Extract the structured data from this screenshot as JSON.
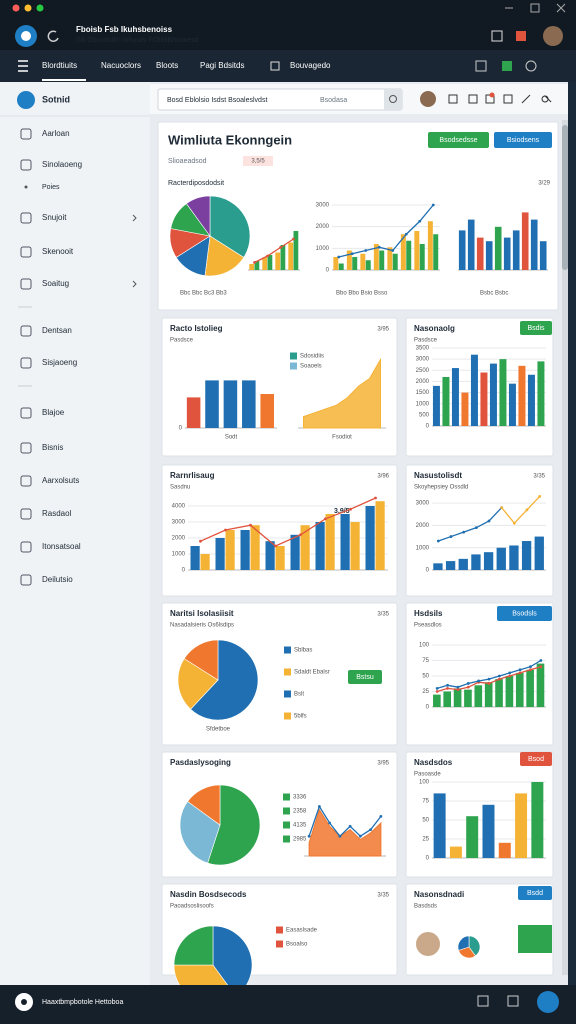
{
  "window": {
    "title": "Fboisb Fsb Ikuhsbenoiss",
    "subtitle": "Gb Gbuvdstkh Iohusiis FObbiBhuovesd"
  },
  "nav": {
    "tabs": [
      "Blordtiuits",
      "Nacuoclors",
      "Bloots",
      "Pagi Bdsitds",
      "Bouvagedo"
    ]
  },
  "sidebar": {
    "title": "Sotnid",
    "items": [
      "Aarloan",
      "Sinolaoeng",
      "Poies",
      "Snujoit",
      "Skenooit",
      "Soaitug",
      "Dentsan",
      "Sisjaoeng",
      "Blajoe",
      "Bisnis",
      "Aarxolsuts",
      "Rasdaol",
      "Itonsatsoal",
      "Deilutsio"
    ]
  },
  "search": {
    "text": "Bosd  Eblolsio  Isdst Bsoaleslvdst",
    "filter": "Bsodasa"
  },
  "overview": {
    "title": "Wimliuta Ekonngein",
    "buttons": [
      {
        "label": "Bsodsedsse",
        "color": "#2ea44f"
      },
      {
        "label": "Bsiodsens",
        "color": "#1f7fc4"
      }
    ],
    "tag_label": "Slioaeadsod",
    "tag": "3,5/5",
    "chart_title": "Racterdiposdodsit",
    "chart_note": "3/29",
    "legends": [
      "Bbc Bbc Bc3 Bb3",
      "Bbo Bbo Bsio Bsso",
      "Bsbc Bsbc"
    ],
    "charts": [
      {
        "type": "pie",
        "values": [
          34,
          18,
          14,
          12,
          12,
          10
        ],
        "colors": [
          "#2a9d8f",
          "#f5b335",
          "#1f6fb2",
          "#e0533d",
          "#2ea44f",
          "#7b3fa0"
        ]
      },
      {
        "type": "bar",
        "ylim": [
          0,
          100
        ],
        "series": [
          {
            "color": "#f5b335",
            "values": [
              12,
              25,
              35,
              55
            ]
          },
          {
            "color": "#2ea44f",
            "values": [
              18,
              30,
              50,
              78
            ]
          }
        ],
        "lines": [
          {
            "color": "#e0533d",
            "values": [
              15,
              28,
              45,
              62
            ]
          }
        ]
      },
      {
        "type": "bar",
        "ylim": [
          0,
          3000
        ],
        "yticks": [
          0,
          1000,
          2000,
          3000
        ],
        "series": [
          {
            "color": "#f5b335",
            "values": [
              600,
              900,
              750,
              1200,
              1050,
              1650,
              1800,
              2250
            ]
          },
          {
            "color": "#2ea44f",
            "values": [
              300,
              600,
              450,
              900,
              750,
              1350,
              1200,
              1650
            ]
          }
        ],
        "lines": [
          {
            "color": "#1f6fb2",
            "values": [
              600,
              750,
              900,
              1050,
              900,
              1650,
              2250,
              3000
            ]
          }
        ]
      },
      {
        "type": "bar",
        "ylim": [
          0,
          100
        ],
        "series": [
          {
            "values": [
              55,
              70,
              45,
              40,
              60,
              45,
              55,
              80,
              70,
              40
            ]
          }
        ],
        "colors": [
          "#1f6fb2",
          "#1f6fb2",
          "#e0533d",
          "#1f6fb2",
          "#2ea44f",
          "#1f6fb2",
          "#1f6fb2",
          "#e0533d",
          "#1f6fb2",
          "#1f6fb2"
        ]
      }
    ]
  },
  "cards": [
    {
      "title": "Racto Istolieg",
      "note": "3/95",
      "subtitle": "Pasdsce",
      "legend": [
        {
          "label": "Sdosidiis",
          "color": "#2a9d8f"
        },
        {
          "label": "Soaoels",
          "color": "#7ab8d6"
        }
      ],
      "charts": [
        {
          "type": "bar",
          "ylim": [
            0,
            100
          ],
          "yticks": [
            0
          ],
          "xlabel": "Sodt",
          "series": [
            {
              "values": [
                45,
                70,
                70,
                70,
                50
              ]
            }
          ],
          "colors": [
            "#e0533d",
            "#1f6fb2",
            "#1f6fb2",
            "#1f6fb2",
            "#f0772e"
          ]
        },
        {
          "type": "area",
          "ylim": [
            0,
            100
          ],
          "xlabel": "Fsodiot",
          "series": [
            {
              "color": "#f5b335",
              "values": [
                15,
                20,
                25,
                30,
                40,
                55,
                65,
                90
              ]
            }
          ]
        }
      ]
    },
    {
      "title": "Nasonaolg",
      "subtitle": "Pasdsce",
      "button": {
        "label": "Bsdis",
        "color": "#2ea44f"
      },
      "charts": [
        {
          "type": "bar",
          "ylim": [
            0,
            3500
          ],
          "yticks": [
            0,
            500,
            1000,
            1500,
            2000,
            2500,
            3000,
            3500
          ],
          "series": [
            {
              "values": [
                1800,
                2200,
                2600,
                1500,
                3200,
                2400,
                2800,
                3000,
                1900,
                2700,
                2300,
                2900
              ]
            }
          ],
          "colors": [
            "#1f6fb2",
            "#2ea44f",
            "#1f6fb2",
            "#f0772e",
            "#1f6fb2",
            "#e0533d",
            "#1f6fb2",
            "#2ea44f",
            "#1f6fb2",
            "#f0772e",
            "#1f6fb2",
            "#2ea44f"
          ]
        }
      ]
    },
    {
      "title": "Rarnrlisaug",
      "note": "3/96",
      "subtitle": "Sasdnu",
      "annotation": "3,9/5",
      "charts": [
        {
          "type": "bar",
          "ylim": [
            0,
            5000
          ],
          "yticks": [
            0,
            1000,
            2000,
            3000,
            4000
          ],
          "series": [
            {
              "color": "#1f6fb2",
              "values": [
                1500,
                2000,
                2500,
                1800,
                2200,
                3000,
                3500,
                4000
              ]
            },
            {
              "color": "#f5b335",
              "values": [
                1000,
                2500,
                2800,
                1500,
                2800,
                3500,
                3000,
                4300
              ]
            }
          ],
          "lines": [
            {
              "color": "#e0533d",
              "values": [
                1800,
                2500,
                2800,
                1500,
                2200,
                3200,
                3800,
                4500
              ]
            }
          ]
        }
      ]
    },
    {
      "title": "Nasustolisdt",
      "note": "3/35",
      "subtitle": "Skoyhepsiey Ossdld",
      "charts": [
        {
          "type": "bar",
          "ylim": [
            0,
            3500
          ],
          "yticks": [
            0,
            1000,
            2000,
            3000
          ],
          "series": [
            {
              "color": "#1f6fb2",
              "values": [
                300,
                400,
                500,
                700,
                800,
                1000,
                1100,
                1300,
                1500
              ]
            }
          ],
          "lines": [
            {
              "color": "#1f6fb2",
              "values": [
                1300,
                1500,
                1700,
                1900,
                2200,
                2800,
                null,
                null,
                null
              ]
            },
            {
              "color": "#f5b335",
              "values": [
                null,
                null,
                null,
                null,
                null,
                2800,
                2100,
                2700,
                3300
              ]
            }
          ]
        }
      ]
    },
    {
      "title": "Naritsi Isolasiisit",
      "note": "3/35",
      "subtitle": "Nasadalsieris Os6lsdips",
      "button": {
        "label": "Bstsu",
        "color": "#2ea44f"
      },
      "legend": [
        {
          "label": "Sblbas",
          "color": "#1f6fb2"
        },
        {
          "label": "Sdaldt Ebalsr",
          "color": "#f5b335"
        },
        {
          "label": "Bslt",
          "color": "#1f6fb2"
        },
        {
          "label": "5blfs",
          "color": "#f5b335"
        }
      ],
      "charts": [
        {
          "type": "pie",
          "xlabel": "Sfdetboe",
          "values": [
            62,
            22,
            16
          ],
          "colors": [
            "#1f6fb2",
            "#f5b335",
            "#f0772e"
          ]
        }
      ]
    },
    {
      "title": "Hsdsils",
      "subtitle": "Pseasdlos",
      "button": {
        "label": "Bsodsls",
        "color": "#1f7fc4"
      },
      "charts": [
        {
          "type": "bar",
          "ylim": [
            0,
            100
          ],
          "yticks": [
            0,
            25,
            50,
            75,
            100
          ],
          "series": [
            {
              "color": "#2ea44f",
              "values": [
                20,
                25,
                30,
                28,
                35,
                40,
                45,
                50,
                55,
                60,
                70
              ]
            }
          ],
          "lines": [
            {
              "color": "#e0533d",
              "values": [
                25,
                30,
                28,
                32,
                40,
                38,
                45,
                50,
                55,
                60,
                65
              ]
            },
            {
              "color": "#1f6fb2",
              "values": [
                30,
                35,
                32,
                38,
                42,
                45,
                50,
                55,
                60,
                65,
                75
              ]
            }
          ]
        }
      ]
    },
    {
      "title": "Pasdaslysoging",
      "note": "3/95",
      "legend": [
        {
          "label": "3336",
          "color": "#2ea44f"
        },
        {
          "label": "2358",
          "color": "#2ea44f"
        },
        {
          "label": "4135",
          "color": "#2ea44f"
        },
        {
          "label": "2985",
          "color": "#2ea44f"
        }
      ],
      "charts": [
        {
          "type": "pie",
          "values": [
            55,
            30,
            15
          ],
          "colors": [
            "#2ea44f",
            "#7ab8d6",
            "#f0772e"
          ]
        },
        {
          "type": "area",
          "ylim": [
            0,
            100
          ],
          "series": [
            {
              "color": "#f0772e",
              "values": [
                20,
                70,
                45,
                30,
                40,
                25,
                35,
                50
              ]
            }
          ],
          "lines": [
            {
              "color": "#1f6fb2",
              "values": [
                30,
                75,
                50,
                30,
                45,
                30,
                40,
                60
              ]
            }
          ]
        }
      ]
    },
    {
      "title": "Nasdsdos",
      "subtitle": "Pasoasde",
      "button": {
        "label": "Bsod",
        "color": "#e0533d"
      },
      "charts": [
        {
          "type": "bar",
          "ylim": [
            0,
            100
          ],
          "yticks": [
            0,
            25,
            50,
            75,
            100
          ],
          "series": [
            {
              "values": [
                85,
                15,
                55,
                70,
                20,
                85,
                100
              ]
            }
          ],
          "colors": [
            "#1f6fb2",
            "#f5b335",
            "#2ea44f",
            "#1f6fb2",
            "#f0772e",
            "#f5b335",
            "#2ea44f"
          ]
        }
      ]
    },
    {
      "title": "Nasdin Bosdsecods",
      "note": "3/35",
      "subtitle": "Paoadsoslisoofs",
      "legend": [
        {
          "label": "Easaslsade",
          "color": "#e0533d"
        },
        {
          "label": "Bsoalso",
          "color": "#e0533d"
        }
      ],
      "charts": [
        {
          "type": "pie",
          "values": [
            40,
            35,
            25
          ],
          "colors": [
            "#1f6fb2",
            "#f5b335",
            "#2ea44f"
          ]
        }
      ]
    },
    {
      "title": "Nasonsdnadi",
      "subtitle": "Basdsds",
      "button": {
        "label": "Bsdd",
        "color": "#1f7fc4"
      },
      "charts": [
        {
          "type": "pie",
          "values": [
            40,
            30,
            30
          ],
          "colors": [
            "#2a9d8f",
            "#f0772e",
            "#1f6fb2"
          ]
        }
      ]
    }
  ],
  "statusbar": {
    "text": "Haaxtbmpbotole Hettoboa"
  }
}
